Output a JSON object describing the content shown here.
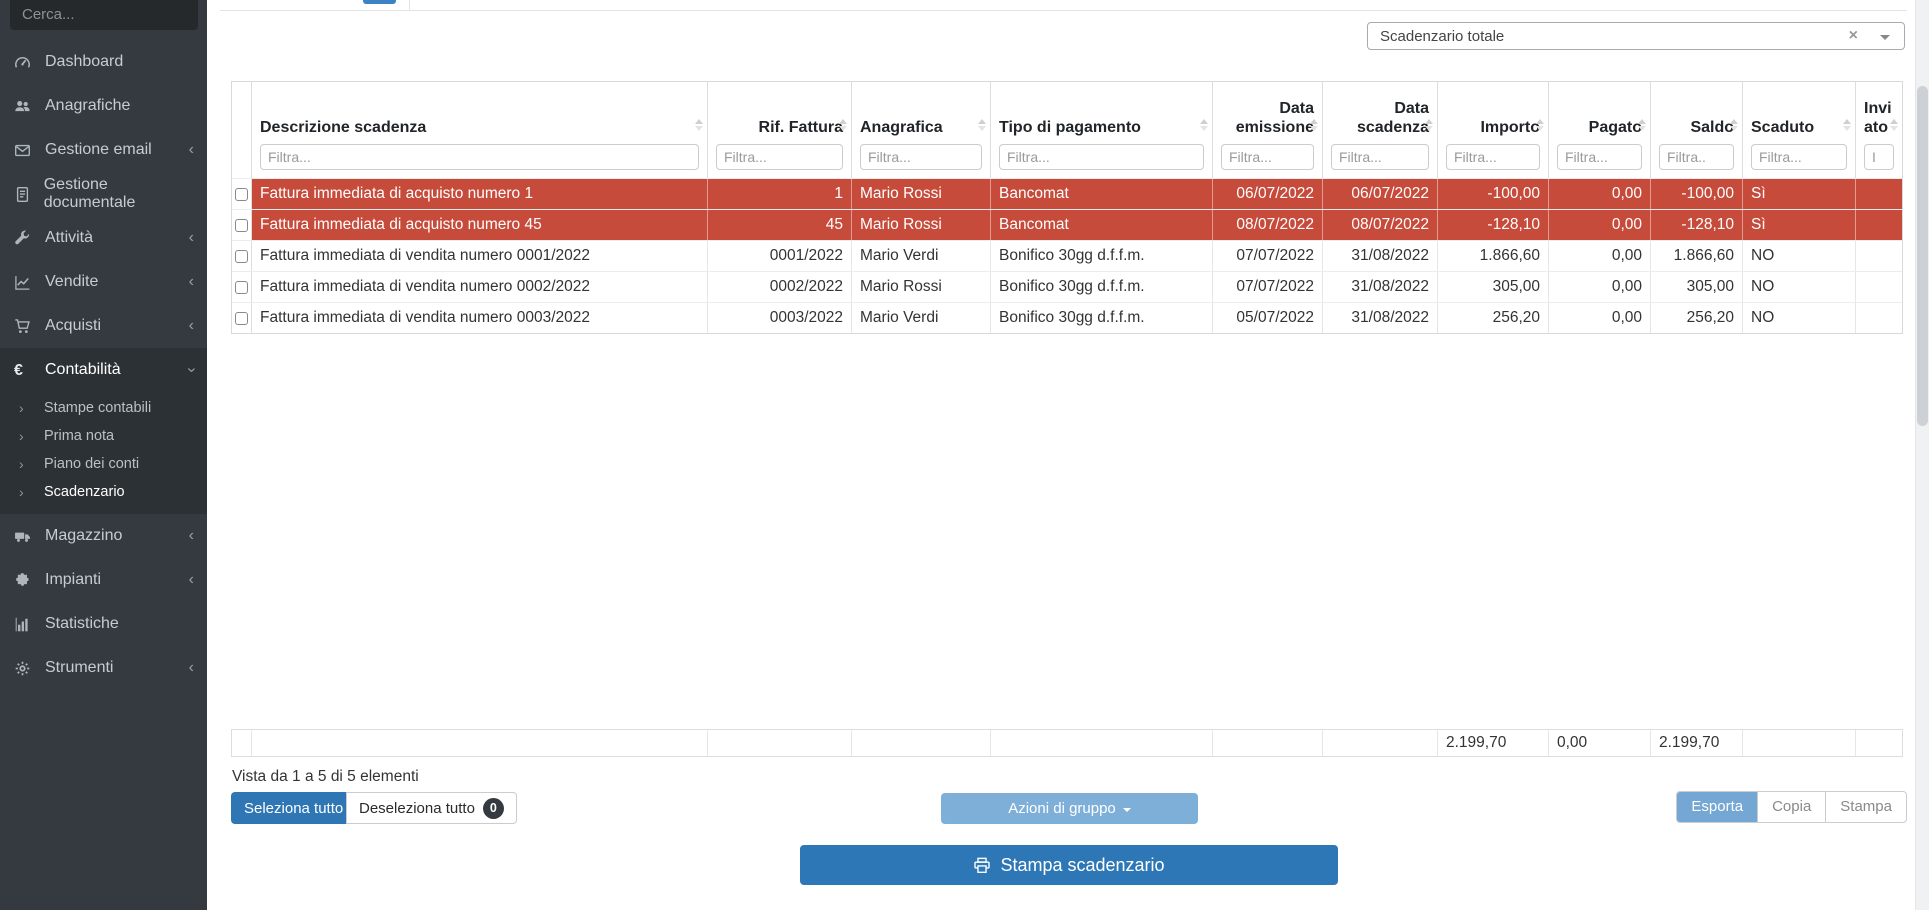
{
  "colors": {
    "primary_blue": "#2e77b6",
    "light_blue": "#79abd6",
    "overdue_red": "#c64b3b",
    "sidebar_dark": "#343a40"
  },
  "sidebar": {
    "search_placeholder": "Cerca...",
    "items": [
      {
        "label": "Dashboard",
        "icon": "gauge-icon"
      },
      {
        "label": "Anagrafiche",
        "icon": "users-icon"
      },
      {
        "label": "Gestione email",
        "icon": "envelope-icon",
        "chevron": "left"
      },
      {
        "label": "Gestione documentale",
        "icon": "document-icon"
      },
      {
        "label": "Attività",
        "icon": "wrench-icon",
        "chevron": "left"
      },
      {
        "label": "Vendite",
        "icon": "chart-line-icon",
        "chevron": "left"
      },
      {
        "label": "Acquisti",
        "icon": "cart-icon",
        "chevron": "left"
      },
      {
        "label": "Contabilità",
        "icon": "euro-icon",
        "chevron": "down",
        "active": true,
        "submenu": [
          {
            "label": "Stampe contabili"
          },
          {
            "label": "Prima nota"
          },
          {
            "label": "Piano dei conti"
          },
          {
            "label": "Scadenzario",
            "active": true
          }
        ]
      },
      {
        "label": "Magazzino",
        "icon": "truck-icon",
        "chevron": "left"
      },
      {
        "label": "Impianti",
        "icon": "puzzle-icon",
        "chevron": "left"
      },
      {
        "label": "Statistiche",
        "icon": "bar-chart-icon"
      },
      {
        "label": "Strumenti",
        "icon": "gear-icon",
        "chevron": "left"
      }
    ]
  },
  "toolbar": {
    "report_select_value": "Scadenzario totale"
  },
  "table": {
    "columns": [
      {
        "key": "descrizione",
        "label": "Descrizione scadenza",
        "filter_placeholder": "Filtra..."
      },
      {
        "key": "rif",
        "label": "Rif. Fattura",
        "filter_placeholder": "Filtra..."
      },
      {
        "key": "anagrafica",
        "label": "Anagrafica",
        "filter_placeholder": "Filtra..."
      },
      {
        "key": "tipo",
        "label": "Tipo di pagamento",
        "filter_placeholder": "Filtra..."
      },
      {
        "key": "emissione",
        "label": "Data emissione",
        "filter_placeholder": "Filtra..."
      },
      {
        "key": "scadenza",
        "label": "Data scadenza",
        "filter_placeholder": "Filtra..."
      },
      {
        "key": "importo",
        "label": "Importo",
        "filter_placeholder": "Filtra..."
      },
      {
        "key": "pagato",
        "label": "Pagato",
        "filter_placeholder": "Filtra..."
      },
      {
        "key": "saldo",
        "label": "Saldo",
        "filter_placeholder": "Filtra.."
      },
      {
        "key": "scaduto",
        "label": "Scaduto",
        "filter_placeholder": "Filtra..."
      },
      {
        "key": "inviato",
        "label": "Inviato",
        "filter_placeholder": "I"
      }
    ],
    "rows": [
      {
        "descrizione": "Fattura immediata di acquisto numero 1",
        "rif": "1",
        "anagrafica": "Mario Rossi",
        "tipo": "Bancomat",
        "emissione": "06/07/2022",
        "scadenza": "06/07/2022",
        "importo": "-100,00",
        "pagato": "0,00",
        "saldo": "-100,00",
        "scaduto": "Sì",
        "inviato": "",
        "overdue": true
      },
      {
        "descrizione": "Fattura immediata di acquisto numero 45",
        "rif": "45",
        "anagrafica": "Mario Rossi",
        "tipo": "Bancomat",
        "emissione": "08/07/2022",
        "scadenza": "08/07/2022",
        "importo": "-128,10",
        "pagato": "0,00",
        "saldo": "-128,10",
        "scaduto": "Sì",
        "inviato": "",
        "overdue": true
      },
      {
        "descrizione": "Fattura immediata di vendita numero 0001/2022",
        "rif": "0001/2022",
        "anagrafica": "Mario Verdi",
        "tipo": "Bonifico 30gg d.f.f.m.",
        "emissione": "07/07/2022",
        "scadenza": "31/08/2022",
        "importo": "1.866,60",
        "pagato": "0,00",
        "saldo": "1.866,60",
        "scaduto": "NO",
        "inviato": "",
        "overdue": false
      },
      {
        "descrizione": "Fattura immediata di vendita numero 0002/2022",
        "rif": "0002/2022",
        "anagrafica": "Mario Rossi",
        "tipo": "Bonifico 30gg d.f.f.m.",
        "emissione": "07/07/2022",
        "scadenza": "31/08/2022",
        "importo": "305,00",
        "pagato": "0,00",
        "saldo": "305,00",
        "scaduto": "NO",
        "inviato": "",
        "overdue": false
      },
      {
        "descrizione": "Fattura immediata di vendita numero 0003/2022",
        "rif": "0003/2022",
        "anagrafica": "Mario Verdi",
        "tipo": "Bonifico 30gg d.f.f.m.",
        "emissione": "05/07/2022",
        "scadenza": "31/08/2022",
        "importo": "256,20",
        "pagato": "0,00",
        "saldo": "256,20",
        "scaduto": "NO",
        "inviato": "",
        "overdue": false
      }
    ],
    "footer_totals": {
      "importo": "2.199,70",
      "pagato": "0,00",
      "saldo": "2.199,70"
    }
  },
  "summary": "Vista da 1 a 5 di 5 elementi",
  "actions": {
    "select_all": "Seleziona tutto",
    "deselect_all": "Deseleziona tutto",
    "deselect_count": "0",
    "group_actions": "Azioni di gruppo",
    "help": "?",
    "export": "Esporta",
    "copy": "Copia",
    "print": "Stampa",
    "print_schedule": "Stampa scadenzario"
  }
}
